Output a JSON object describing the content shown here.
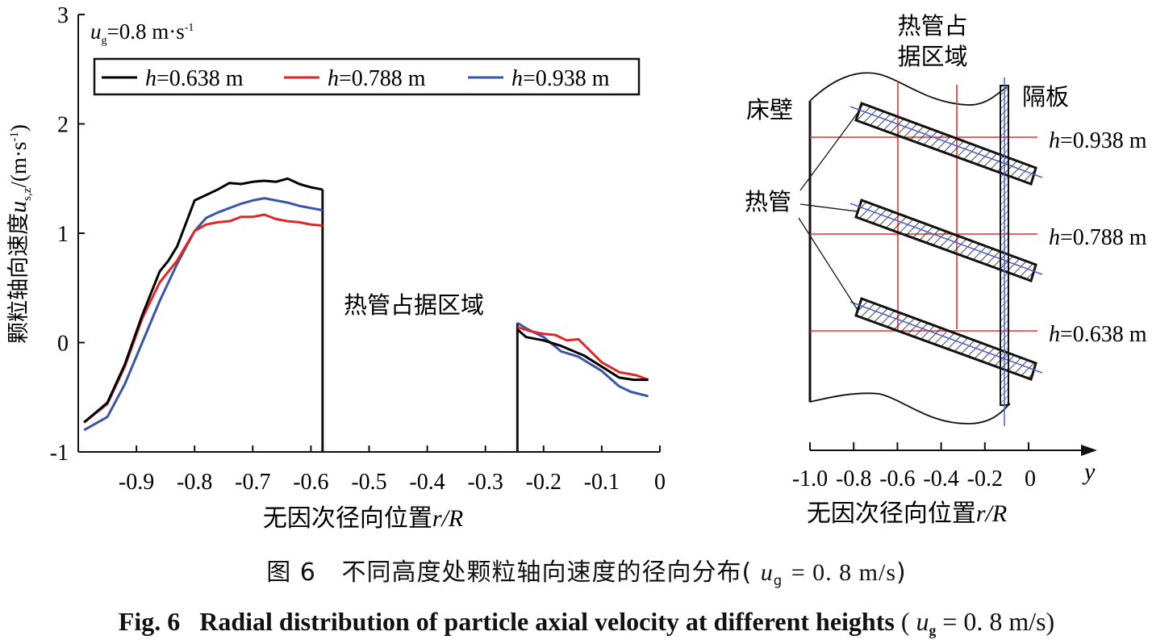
{
  "chart_data": [
    {
      "type": "line",
      "ylabel": "颗粒轴向速度",
      "ylabel_var": "u",
      "ylabel_sub": "s,z",
      "ylabel_unit": "/(m·s",
      "ylabel_unit_exp": "-1",
      "ylabel_unit_close": ")",
      "xlabel": "无因次径向位置",
      "xlabel_var": "r/R",
      "xlim": [
        -1.0,
        0
      ],
      "ylim": [
        -1,
        3
      ],
      "xticks": [
        "-0.9",
        "-0.8",
        "-0.7",
        "-0.6",
        "-0.5",
        "-0.4",
        "-0.3",
        "-0.2",
        "-0.1",
        "0"
      ],
      "yticks": [
        "-1",
        "0",
        "1",
        "2",
        "3"
      ],
      "condition_var": "u",
      "condition_sub": "g",
      "condition_rest": "=0.8 m·s",
      "condition_exp": "-1",
      "gap_label": "热管占据区域",
      "gap_range": [
        -0.58,
        -0.245
      ],
      "legend_position": "top-left",
      "series": [
        {
          "name_var": "h",
          "name_rest": "=0.638 m",
          "color": "#000000",
          "segments": [
            [
              [
                -0.99,
                -0.73
              ],
              [
                -0.95,
                -0.55
              ],
              [
                -0.92,
                -0.2
              ],
              [
                -0.89,
                0.25
              ],
              [
                -0.86,
                0.65
              ],
              [
                -0.845,
                0.75
              ],
              [
                -0.83,
                0.88
              ],
              [
                -0.8,
                1.3
              ],
              [
                -0.78,
                1.35
              ],
              [
                -0.76,
                1.4
              ],
              [
                -0.74,
                1.46
              ],
              [
                -0.72,
                1.45
              ],
              [
                -0.7,
                1.47
              ],
              [
                -0.68,
                1.48
              ],
              [
                -0.66,
                1.47
              ],
              [
                -0.64,
                1.5
              ],
              [
                -0.62,
                1.45
              ],
              [
                -0.6,
                1.42
              ],
              [
                -0.58,
                1.4
              ]
            ],
            [
              [
                -0.245,
                0.12
              ],
              [
                -0.23,
                0.05
              ],
              [
                -0.2,
                0.02
              ],
              [
                -0.17,
                -0.03
              ],
              [
                -0.13,
                -0.12
              ],
              [
                -0.1,
                -0.22
              ],
              [
                -0.07,
                -0.32
              ],
              [
                -0.045,
                -0.34
              ],
              [
                -0.02,
                -0.34
              ]
            ]
          ]
        },
        {
          "name_var": "h",
          "name_rest": "=0.788 m",
          "color": "#e02626",
          "segments": [
            [
              [
                -0.99,
                -0.73
              ],
              [
                -0.95,
                -0.56
              ],
              [
                -0.92,
                -0.22
              ],
              [
                -0.89,
                0.22
              ],
              [
                -0.86,
                0.55
              ],
              [
                -0.83,
                0.75
              ],
              [
                -0.8,
                1.02
              ],
              [
                -0.78,
                1.08
              ],
              [
                -0.76,
                1.1
              ],
              [
                -0.74,
                1.11
              ],
              [
                -0.72,
                1.15
              ],
              [
                -0.7,
                1.15
              ],
              [
                -0.68,
                1.17
              ],
              [
                -0.66,
                1.13
              ],
              [
                -0.64,
                1.11
              ],
              [
                -0.62,
                1.1
              ],
              [
                -0.6,
                1.08
              ],
              [
                -0.58,
                1.07
              ]
            ],
            [
              [
                -0.245,
                0.14
              ],
              [
                -0.22,
                0.1
              ],
              [
                -0.2,
                0.08
              ],
              [
                -0.18,
                0.07
              ],
              [
                -0.16,
                0.02
              ],
              [
                -0.14,
                0.03
              ],
              [
                -0.1,
                -0.18
              ],
              [
                -0.07,
                -0.27
              ],
              [
                -0.04,
                -0.3
              ],
              [
                -0.02,
                -0.34
              ]
            ]
          ]
        },
        {
          "name_var": "h",
          "name_rest": "=0.938 m",
          "color": "#3a55a8",
          "segments": [
            [
              [
                -0.99,
                -0.8
              ],
              [
                -0.95,
                -0.68
              ],
              [
                -0.92,
                -0.38
              ],
              [
                -0.89,
                0.0
              ],
              [
                -0.86,
                0.38
              ],
              [
                -0.83,
                0.72
              ],
              [
                -0.8,
                1.02
              ],
              [
                -0.78,
                1.14
              ],
              [
                -0.76,
                1.19
              ],
              [
                -0.74,
                1.23
              ],
              [
                -0.72,
                1.27
              ],
              [
                -0.7,
                1.3
              ],
              [
                -0.68,
                1.32
              ],
              [
                -0.66,
                1.3
              ],
              [
                -0.64,
                1.28
              ],
              [
                -0.62,
                1.25
              ],
              [
                -0.6,
                1.23
              ],
              [
                -0.58,
                1.21
              ]
            ],
            [
              [
                -0.245,
                0.18
              ],
              [
                -0.23,
                0.13
              ],
              [
                -0.2,
                0.05
              ],
              [
                -0.17,
                -0.08
              ],
              [
                -0.14,
                -0.13
              ],
              [
                -0.1,
                -0.26
              ],
              [
                -0.07,
                -0.4
              ],
              [
                -0.05,
                -0.45
              ],
              [
                -0.02,
                -0.49
              ]
            ]
          ]
        }
      ]
    }
  ],
  "schematic": {
    "wall_label": "床壁",
    "baffle_label": "隔板",
    "pipe_label": "热管",
    "region_label_line1": "热管占",
    "region_label_line2": "据区域",
    "height_labels": [
      {
        "var": "h",
        "rest": "=0.938 m"
      },
      {
        "var": "h",
        "rest": "=0.788 m"
      },
      {
        "var": "h",
        "rest": "=0.638 m"
      }
    ],
    "axis_ticks": [
      "-1.0",
      "-0.8",
      "-0.6",
      "-0.4",
      "-0.2",
      "0"
    ],
    "axis_var": "y",
    "xlabel": "无因次径向位置",
    "xlabel_var": "r/R",
    "colors": {
      "grid": "#e53030",
      "pipe_axis": "#4a5fd0",
      "outline": "#111111"
    }
  },
  "caption_cn": {
    "fig": "图 6",
    "text": "不同高度处颗粒轴向速度的径向分布",
    "open": "(",
    "var": "u",
    "sub": "g",
    "rest": "= 0. 8  m/s",
    "close": ")"
  },
  "caption_en": {
    "fig": "Fig. 6",
    "text": "Radial distribution of particle axial velocity at different heights",
    "open": "(",
    "var": "u",
    "sub": "g",
    "rest": "= 0. 8  m/s",
    "close": ")"
  }
}
